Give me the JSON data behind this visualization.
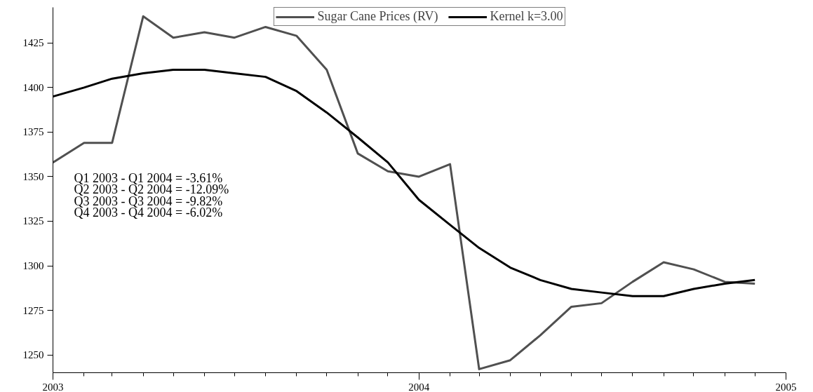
{
  "chart_data": {
    "type": "line",
    "x": [
      "2003-01",
      "2003-02",
      "2003-03",
      "2003-04",
      "2003-05",
      "2003-06",
      "2003-07",
      "2003-08",
      "2003-09",
      "2003-10",
      "2003-11",
      "2003-12",
      "2004-01",
      "2004-02",
      "2004-03",
      "2004-04",
      "2004-05",
      "2004-06",
      "2004-07",
      "2004-08",
      "2004-09",
      "2004-10",
      "2004-11",
      "2004-12"
    ],
    "series": [
      {
        "name": "Sugar Cane Prices (RV)",
        "color": "#505050",
        "values": [
          1358,
          1369,
          1369,
          1440,
          1428,
          1431,
          1428,
          1434,
          1429,
          1410,
          1363,
          1353,
          1350,
          1357,
          1242,
          1247,
          1261,
          1277,
          1279,
          1291,
          1302,
          1298,
          1291,
          1290
        ]
      },
      {
        "name": "Kernel k=3.00",
        "color": "#000000",
        "values": [
          1395,
          1400,
          1405,
          1408,
          1410,
          1410,
          1408,
          1406,
          1398,
          1386,
          1372,
          1358,
          1337,
          1323,
          1310,
          1299,
          1292,
          1287,
          1285,
          1283,
          1283,
          1287,
          1290,
          1292
        ]
      }
    ],
    "xlim": [
      "2003",
      "2005"
    ],
    "xticks": [
      {
        "value": "2003",
        "label": "2003"
      },
      {
        "value": "2003-02",
        "label": null
      },
      {
        "value": "2003-03",
        "label": null
      },
      {
        "value": "2003-04",
        "label": null
      },
      {
        "value": "2003-05",
        "label": null
      },
      {
        "value": "2003-06",
        "label": null
      },
      {
        "value": "2003-07",
        "label": null
      },
      {
        "value": "2003-08",
        "label": null
      },
      {
        "value": "2003-09",
        "label": null
      },
      {
        "value": "2003-10",
        "label": null
      },
      {
        "value": "2003-11",
        "label": null
      },
      {
        "value": "2003-12",
        "label": null
      },
      {
        "value": "2004",
        "label": "2004"
      },
      {
        "value": "2004-02",
        "label": null
      },
      {
        "value": "2004-03",
        "label": null
      },
      {
        "value": "2004-04",
        "label": null
      },
      {
        "value": "2004-05",
        "label": null
      },
      {
        "value": "2004-06",
        "label": null
      },
      {
        "value": "2004-07",
        "label": null
      },
      {
        "value": "2004-08",
        "label": null
      },
      {
        "value": "2004-09",
        "label": null
      },
      {
        "value": "2004-10",
        "label": null
      },
      {
        "value": "2004-11",
        "label": null
      },
      {
        "value": "2004-12",
        "label": null
      },
      {
        "value": "2005",
        "label": "2005"
      }
    ],
    "ylim": [
      1240,
      1445
    ],
    "yticks": [
      1250,
      1275,
      1300,
      1325,
      1350,
      1375,
      1400,
      1425
    ],
    "annotations": [
      "Q1 2003 - Q1 2004 =  -3.61%",
      "Q2 2003 - Q2 2004 = -12.09%",
      "Q3 2003 - Q3 2004 =  -9.82%",
      "Q4 2003 - Q4 2004 =  -6.02%"
    ],
    "grid": false,
    "legend": "top"
  }
}
